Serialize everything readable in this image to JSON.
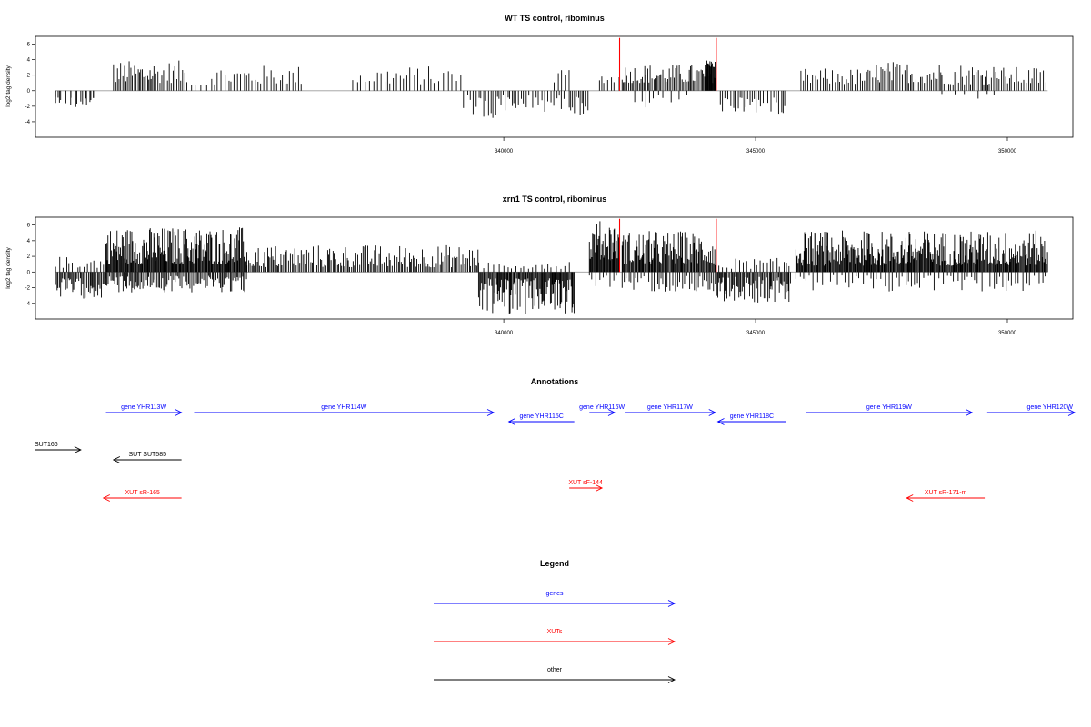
{
  "colors": {
    "gene": "#0000ff",
    "xut": "#ff0000",
    "other": "#000000",
    "marker": "#ff0000",
    "signal": "#000000",
    "baseline": "#9a9a9a"
  },
  "chart_data": [
    {
      "type": "bar",
      "title": "WT TS control, ribominus",
      "ylabel": "log2 tag density",
      "xlim": [
        330700,
        351300
      ],
      "ylim": [
        -6,
        7
      ],
      "yticks": [
        -4,
        -2,
        0,
        2,
        4,
        6
      ],
      "xticks": [
        340000,
        345000,
        350000
      ],
      "x_start": 331100,
      "x_end": 350800,
      "markers_x": [
        342300,
        344220
      ],
      "marker_height": 6.8,
      "series": [
        {
          "values": [
            [
              331100,
              -0.8
            ],
            [
              331150,
              -0.9
            ],
            [
              331200,
              -1.2
            ],
            [
              331300,
              -1.5
            ],
            [
              331400,
              -1.8
            ],
            [
              331500,
              -2.1
            ],
            [
              331600,
              -1.4
            ],
            [
              331700,
              -1.0
            ],
            [
              331800,
              -1.2
            ],
            [
              331850,
              -0.9
            ]
          ],
          "note_range": "negative-start"
        }
      ],
      "density": {
        "segments": [
          {
            "from": 331100,
            "to": 331950,
            "mode": "neg",
            "lo": 0.8,
            "hi": 2.2,
            "step": 90
          },
          {
            "from": 332250,
            "to": 333750,
            "mode": "pos",
            "lo": 1.0,
            "hi": 3.9,
            "step": 35
          },
          {
            "from": 333800,
            "to": 334200,
            "mode": "pos",
            "lo": 0.7,
            "hi": 1.0,
            "step": 90
          },
          {
            "from": 334200,
            "to": 336000,
            "mode": "pos",
            "lo": 0.8,
            "hi": 3.3,
            "step": 60
          },
          {
            "from": 337000,
            "to": 339200,
            "mode": "pos",
            "lo": 0.8,
            "hi": 3.2,
            "step": 70
          },
          {
            "from": 339200,
            "to": 340200,
            "mode": "neg",
            "lo": 0.5,
            "hi": 4.4,
            "step": 45
          },
          {
            "from": 340200,
            "to": 341200,
            "mode": "neg",
            "lo": 0.6,
            "hi": 2.8,
            "step": 55
          },
          {
            "from": 341000,
            "to": 341300,
            "mode": "pos",
            "lo": 1.0,
            "hi": 2.7,
            "step": 60
          },
          {
            "from": 341300,
            "to": 341700,
            "mode": "neg",
            "lo": 0.8,
            "hi": 3.2,
            "step": 40
          },
          {
            "from": 341900,
            "to": 342300,
            "mode": "pos",
            "lo": 1.0,
            "hi": 2.3,
            "step": 60
          },
          {
            "from": 342350,
            "to": 344200,
            "mode": "pos",
            "lo": 1.0,
            "hi": 3.5,
            "step": 30
          },
          {
            "from": 342600,
            "to": 343700,
            "mode": "neg",
            "lo": 0.5,
            "hi": 2.6,
            "step": 120
          },
          {
            "from": 344000,
            "to": 344200,
            "mode": "pos",
            "lo": 3.0,
            "hi": 4.0,
            "step": 15
          },
          {
            "from": 344300,
            "to": 345600,
            "mode": "neg",
            "lo": 0.7,
            "hi": 3.0,
            "step": 45
          },
          {
            "from": 345900,
            "to": 347400,
            "mode": "pos",
            "lo": 0.8,
            "hi": 2.9,
            "step": 45
          },
          {
            "from": 347400,
            "to": 348700,
            "mode": "pos",
            "lo": 1.0,
            "hi": 3.8,
            "step": 40
          },
          {
            "from": 348700,
            "to": 349800,
            "mode": "pos",
            "lo": 0.8,
            "hi": 3.6,
            "step": 40
          },
          {
            "from": 348700,
            "to": 349800,
            "mode": "neg",
            "lo": 0.4,
            "hi": 1.1,
            "step": 220
          },
          {
            "from": 349800,
            "to": 350800,
            "mode": "pos",
            "lo": 0.8,
            "hi": 3.1,
            "step": 45
          }
        ]
      }
    },
    {
      "type": "bar",
      "title": "xrn1 TS control, ribominus",
      "ylabel": "log2 tag density",
      "xlim": [
        330700,
        351300
      ],
      "ylim": [
        -6,
        7
      ],
      "yticks": [
        -4,
        -2,
        0,
        2,
        4,
        6
      ],
      "xticks": [
        340000,
        345000,
        350000
      ],
      "x_start": 331100,
      "x_end": 350800,
      "markers_x": [
        342300,
        344220
      ],
      "marker_height": 6.8,
      "series": [],
      "density": {
        "segments": [
          {
            "from": 331100,
            "to": 332100,
            "mode": "neg",
            "lo": 0.8,
            "hi": 3.4,
            "step": 25
          },
          {
            "from": 331100,
            "to": 332100,
            "mode": "pos",
            "lo": 0.5,
            "hi": 2.0,
            "step": 60
          },
          {
            "from": 332100,
            "to": 334900,
            "mode": "pos",
            "lo": 1.0,
            "hi": 5.8,
            "step": 16
          },
          {
            "from": 332100,
            "to": 334900,
            "mode": "neg",
            "lo": 0.5,
            "hi": 2.6,
            "step": 28
          },
          {
            "from": 334900,
            "to": 339500,
            "mode": "pos",
            "lo": 0.6,
            "hi": 3.5,
            "step": 30
          },
          {
            "from": 339500,
            "to": 341400,
            "mode": "neg",
            "lo": 0.8,
            "hi": 5.4,
            "step": 18
          },
          {
            "from": 339500,
            "to": 341400,
            "mode": "pos",
            "lo": 0.4,
            "hi": 1.6,
            "step": 80
          },
          {
            "from": 341700,
            "to": 342300,
            "mode": "pos",
            "lo": 1.5,
            "hi": 6.6,
            "step": 14
          },
          {
            "from": 341700,
            "to": 342300,
            "mode": "neg",
            "lo": 0.4,
            "hi": 2.0,
            "step": 60
          },
          {
            "from": 342350,
            "to": 344200,
            "mode": "pos",
            "lo": 1.0,
            "hi": 5.3,
            "step": 18
          },
          {
            "from": 342350,
            "to": 344200,
            "mode": "neg",
            "lo": 0.5,
            "hi": 2.5,
            "step": 45
          },
          {
            "from": 344200,
            "to": 345700,
            "mode": "neg",
            "lo": 0.6,
            "hi": 4.0,
            "step": 22
          },
          {
            "from": 344200,
            "to": 345700,
            "mode": "pos",
            "lo": 0.4,
            "hi": 1.8,
            "step": 70
          },
          {
            "from": 345800,
            "to": 350800,
            "mode": "pos",
            "lo": 0.8,
            "hi": 5.3,
            "step": 16
          },
          {
            "from": 345800,
            "to": 350800,
            "mode": "neg",
            "lo": 0.4,
            "hi": 2.6,
            "step": 70
          }
        ]
      }
    }
  ],
  "annotations": {
    "title": "Annotations",
    "items": [
      {
        "label": "gene YHR113W",
        "kind": "gene",
        "from": 332100,
        "to": 333600,
        "dir": "right",
        "row": 0
      },
      {
        "label": "gene YHR114W",
        "kind": "gene",
        "from": 333850,
        "to": 339800,
        "dir": "right",
        "row": 0
      },
      {
        "label": "gene YHR115C",
        "kind": "gene",
        "from": 340100,
        "to": 341400,
        "dir": "left",
        "row": 1
      },
      {
        "label": "gene YHR116W",
        "kind": "gene",
        "from": 341700,
        "to": 342200,
        "dir": "right",
        "row": 0
      },
      {
        "label": "gene YHR117W",
        "kind": "gene",
        "from": 342400,
        "to": 344200,
        "dir": "right",
        "row": 0
      },
      {
        "label": "gene YHR118C",
        "kind": "gene",
        "from": 344250,
        "to": 345600,
        "dir": "left",
        "row": 1
      },
      {
        "label": "gene YHR119W",
        "kind": "gene",
        "from": 346000,
        "to": 349300,
        "dir": "right",
        "row": 0
      },
      {
        "label": "gene YHR120W",
        "kind": "gene",
        "from": 349600,
        "to": 351500,
        "dir": "right",
        "row": 0
      },
      {
        "label": "SUT166",
        "kind": "other",
        "from": 330700,
        "to": 331600,
        "dir": "right",
        "row": 3
      },
      {
        "label": "SUT SUT585",
        "kind": "other",
        "from": 332250,
        "to": 333600,
        "dir": "left",
        "row": 4
      },
      {
        "label": "XUT sF-144",
        "kind": "xut",
        "from": 341300,
        "to": 341950,
        "dir": "right",
        "row": 6
      },
      {
        "label": "XUT sR-165",
        "kind": "xut",
        "from": 332050,
        "to": 333600,
        "dir": "left",
        "row": 7
      },
      {
        "label": "XUT sR-171-m",
        "kind": "xut",
        "from": 348000,
        "to": 349550,
        "dir": "left",
        "row": 7
      }
    ]
  },
  "legend": {
    "title": "Legend",
    "items": [
      {
        "label": "genes",
        "kind": "gene"
      },
      {
        "label": "XUTs",
        "kind": "xut"
      },
      {
        "label": "other",
        "kind": "other"
      }
    ]
  }
}
